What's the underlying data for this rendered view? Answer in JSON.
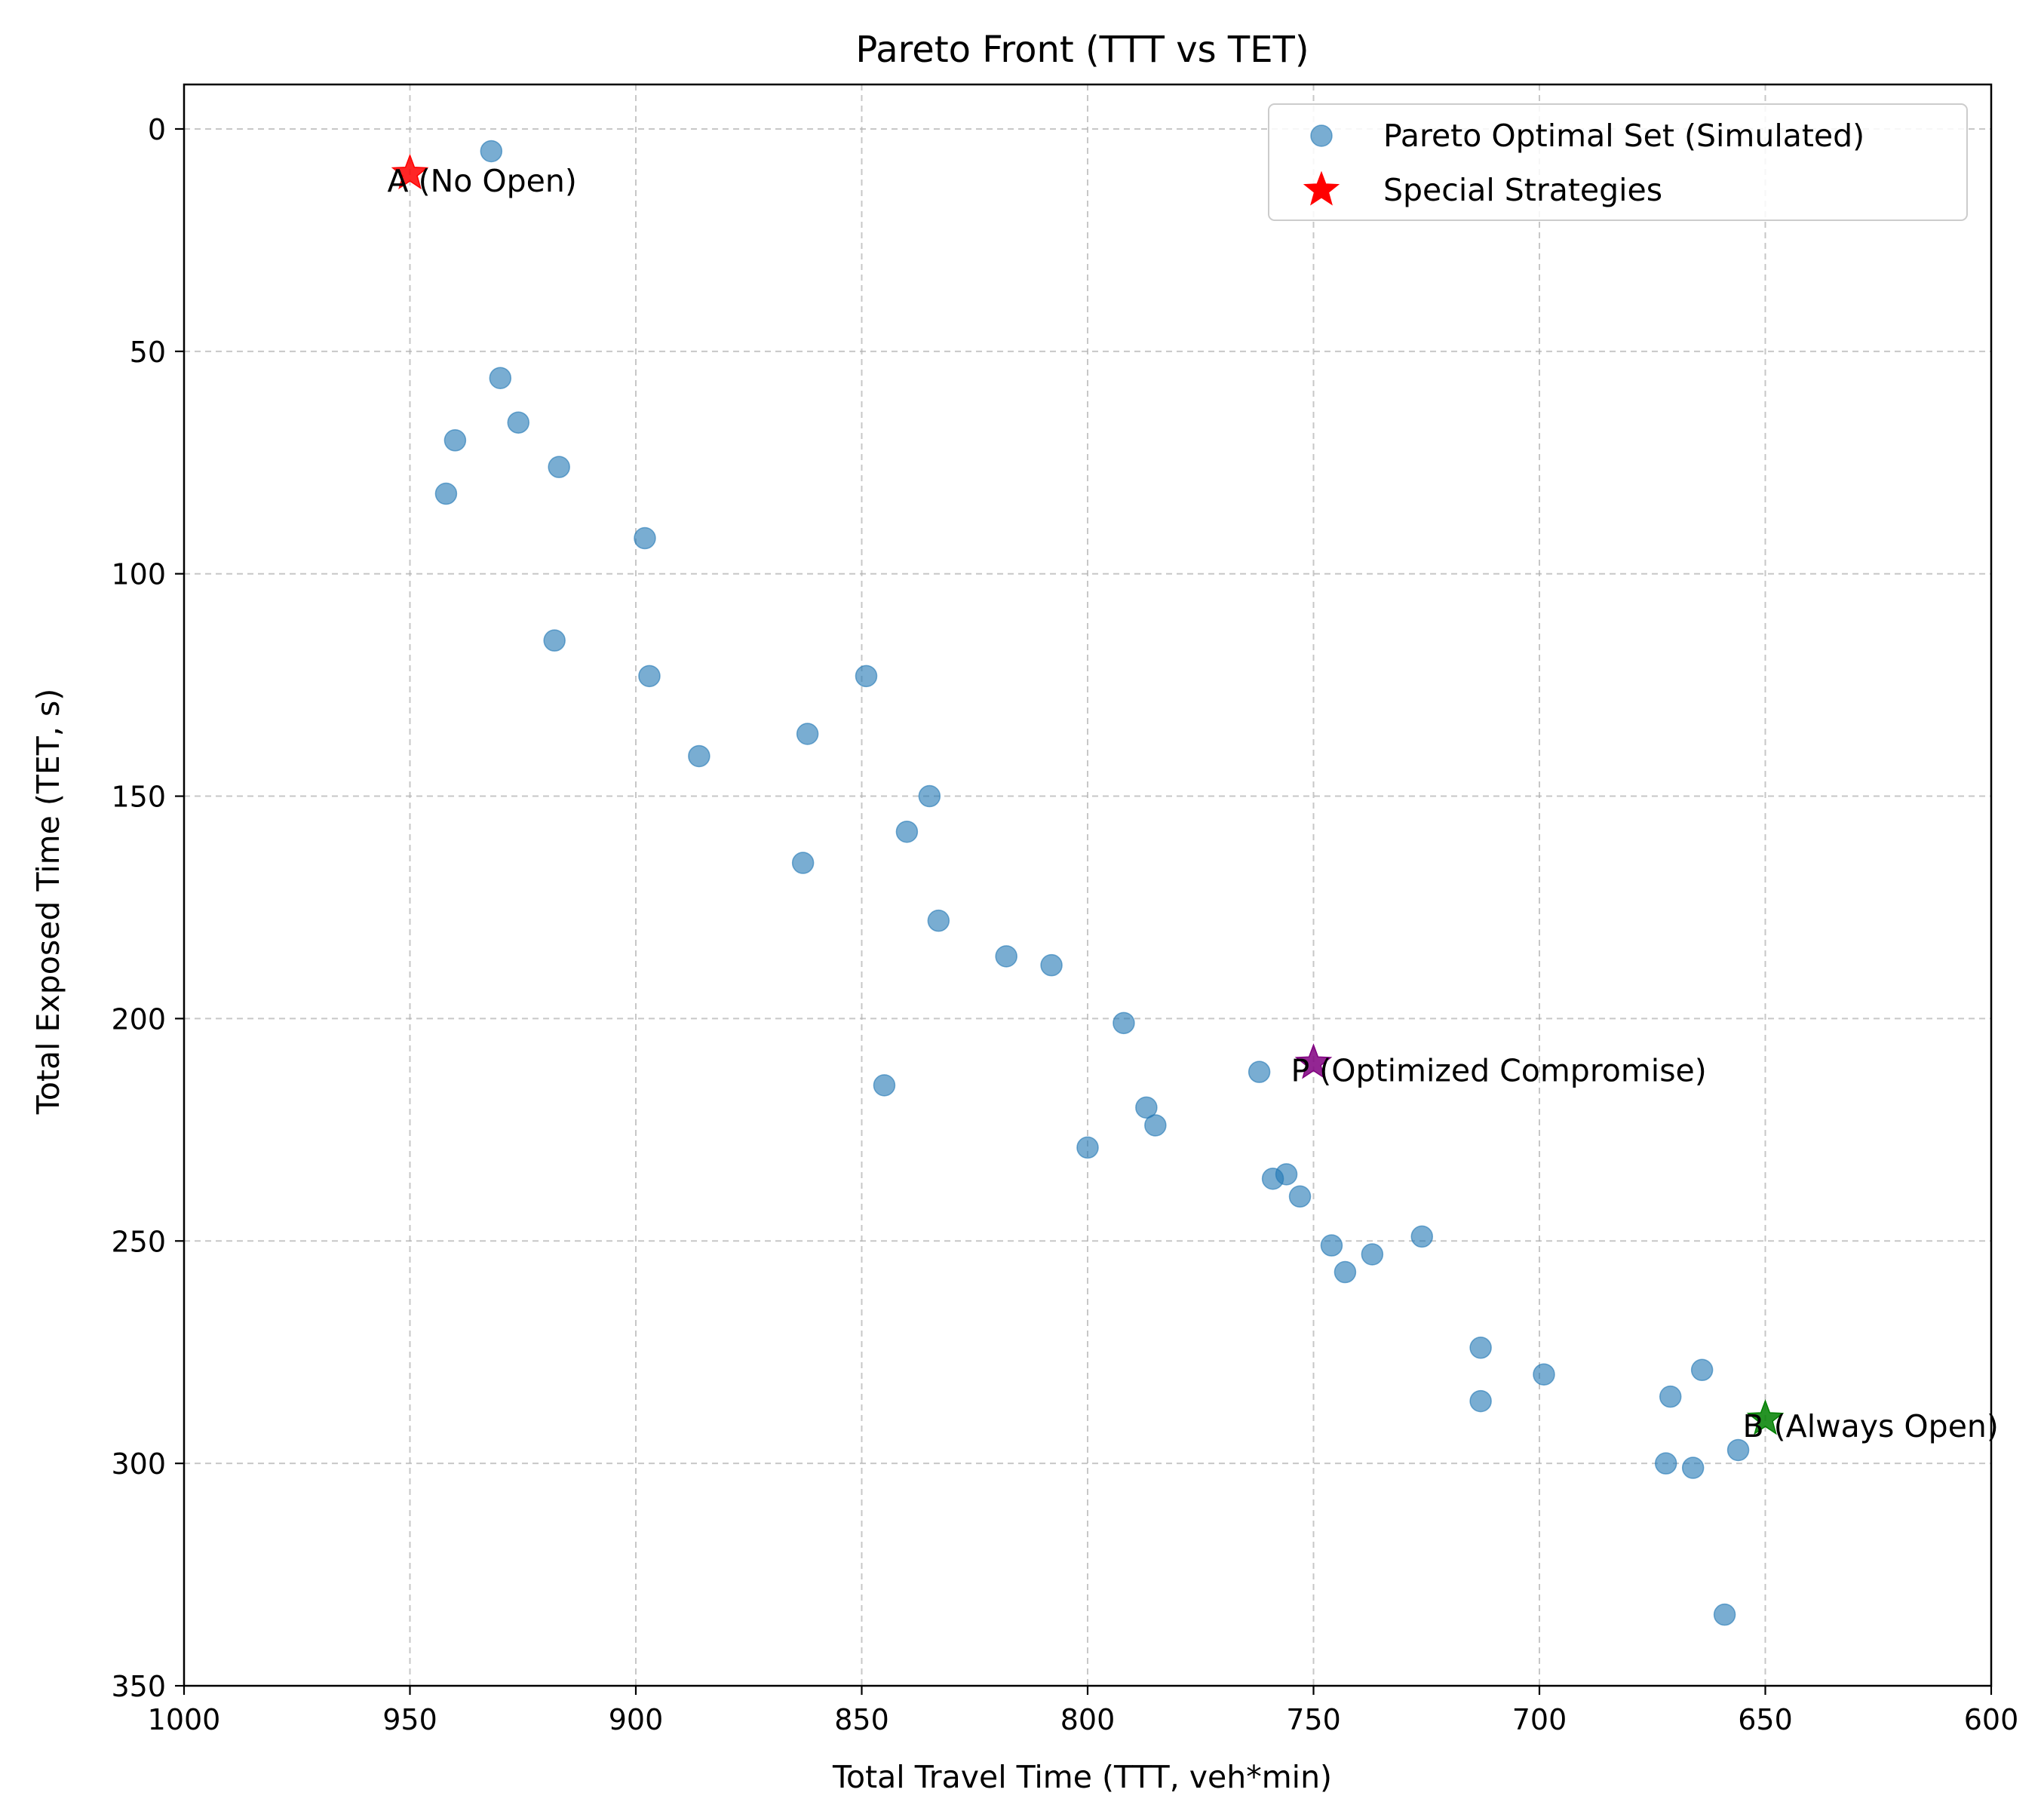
{
  "chart_data": {
    "type": "scatter",
    "title": "Pareto Front (TTT vs TET)",
    "xlabel": "Total Travel Time (TTT, veh*min)",
    "ylabel": "Total Exposed Time (TET, s)",
    "xlim": [
      1000,
      600
    ],
    "ylim": [
      350,
      -10
    ],
    "x_inverted": true,
    "y_inverted": true,
    "grid": true,
    "x_ticks": [
      1000,
      950,
      900,
      850,
      800,
      750,
      700,
      650,
      600
    ],
    "y_ticks": [
      0,
      50,
      100,
      150,
      200,
      250,
      300,
      350
    ],
    "x_tick_labels": [
      "1000",
      "950",
      "900",
      "850",
      "800",
      "750",
      "700",
      "650",
      "600"
    ],
    "y_tick_labels": [
      "0",
      "50",
      "100",
      "150",
      "200",
      "250",
      "300",
      "350"
    ],
    "series": [
      {
        "name": "Pareto Optimal Set (Simulated)",
        "color": "#1f77b4",
        "marker": "circle",
        "points": [
          [
            932,
            5
          ],
          [
            930,
            56
          ],
          [
            926,
            66
          ],
          [
            940,
            70
          ],
          [
            917,
            76
          ],
          [
            942,
            82
          ],
          [
            898,
            92
          ],
          [
            918,
            115
          ],
          [
            897,
            123
          ],
          [
            886,
            141
          ],
          [
            849,
            123
          ],
          [
            862,
            136
          ],
          [
            835,
            150
          ],
          [
            840,
            158
          ],
          [
            863,
            165
          ],
          [
            833,
            178
          ],
          [
            818,
            186
          ],
          [
            808,
            188
          ],
          [
            792,
            201
          ],
          [
            845,
            215
          ],
          [
            762,
            212
          ],
          [
            787,
            220
          ],
          [
            785,
            224
          ],
          [
            800,
            229
          ],
          [
            759,
            236
          ],
          [
            756,
            235
          ],
          [
            753,
            240
          ],
          [
            746,
            251
          ],
          [
            743,
            257
          ],
          [
            737,
            253
          ],
          [
            726,
            249
          ],
          [
            713,
            274
          ],
          [
            713,
            286
          ],
          [
            699,
            280
          ],
          [
            671,
            285
          ],
          [
            664,
            279
          ],
          [
            672,
            300
          ],
          [
            666,
            301
          ],
          [
            656,
            297
          ],
          [
            659,
            334
          ]
        ]
      }
    ],
    "special_points": [
      {
        "label": "A (No Open)",
        "x": 950,
        "y": 10,
        "color": "#ff0000"
      },
      {
        "label": "P (Optimized Compromise)",
        "x": 750,
        "y": 210,
        "color": "#800080"
      },
      {
        "label": "B (Always Open)",
        "x": 650,
        "y": 290,
        "color": "#008000"
      }
    ],
    "legend": {
      "position": "upper right",
      "entries": [
        "Pareto Optimal Set (Simulated)",
        "Special Strategies"
      ],
      "colors": [
        "#1f77b4",
        "#ff0000"
      ]
    }
  }
}
